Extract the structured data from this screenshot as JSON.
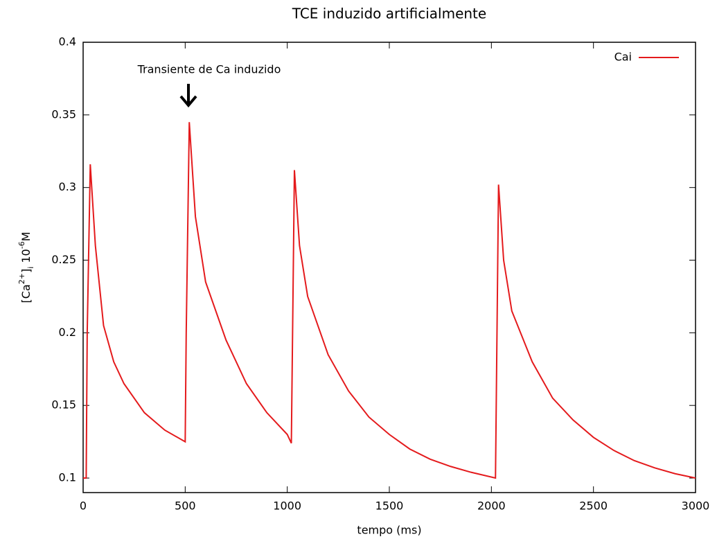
{
  "chart_data": {
    "type": "line",
    "title": "TCE induzido artificialmente",
    "xlabel": "tempo (ms)",
    "ylabel": [
      "[Ca",
      "2+",
      "]",
      "i",
      " 10",
      "-6",
      "M"
    ],
    "annotation": "Transiente de Ca induzido",
    "x": [
      0,
      15,
      20,
      35,
      60,
      100,
      150,
      200,
      300,
      400,
      500,
      505,
      520,
      550,
      600,
      700,
      800,
      900,
      1000,
      1020,
      1035,
      1060,
      1100,
      1200,
      1300,
      1400,
      1500,
      1600,
      1700,
      1800,
      1900,
      2020,
      2035,
      2060,
      2100,
      2200,
      2300,
      2400,
      2500,
      2600,
      2700,
      2800,
      2900,
      3000
    ],
    "series": [
      {
        "name": "Cai",
        "color": "#e41a1c",
        "values": [
          0.1,
          0.1,
          0.2,
          0.316,
          0.26,
          0.205,
          0.18,
          0.165,
          0.145,
          0.133,
          0.125,
          0.2,
          0.345,
          0.28,
          0.235,
          0.195,
          0.165,
          0.145,
          0.13,
          0.124,
          0.312,
          0.26,
          0.225,
          0.185,
          0.16,
          0.142,
          0.13,
          0.12,
          0.113,
          0.108,
          0.104,
          0.1,
          0.302,
          0.25,
          0.215,
          0.18,
          0.155,
          0.14,
          0.128,
          0.119,
          0.112,
          0.107,
          0.103,
          0.1
        ]
      }
    ],
    "xlim": [
      0,
      3000
    ],
    "xticks": [
      0,
      500,
      1000,
      1500,
      2000,
      2500,
      3000
    ],
    "ylim": [
      0.09,
      0.4
    ],
    "yticks": [
      0.1,
      0.15,
      0.2,
      0.25,
      0.3,
      0.35,
      0.4
    ],
    "legend": "upper right"
  }
}
